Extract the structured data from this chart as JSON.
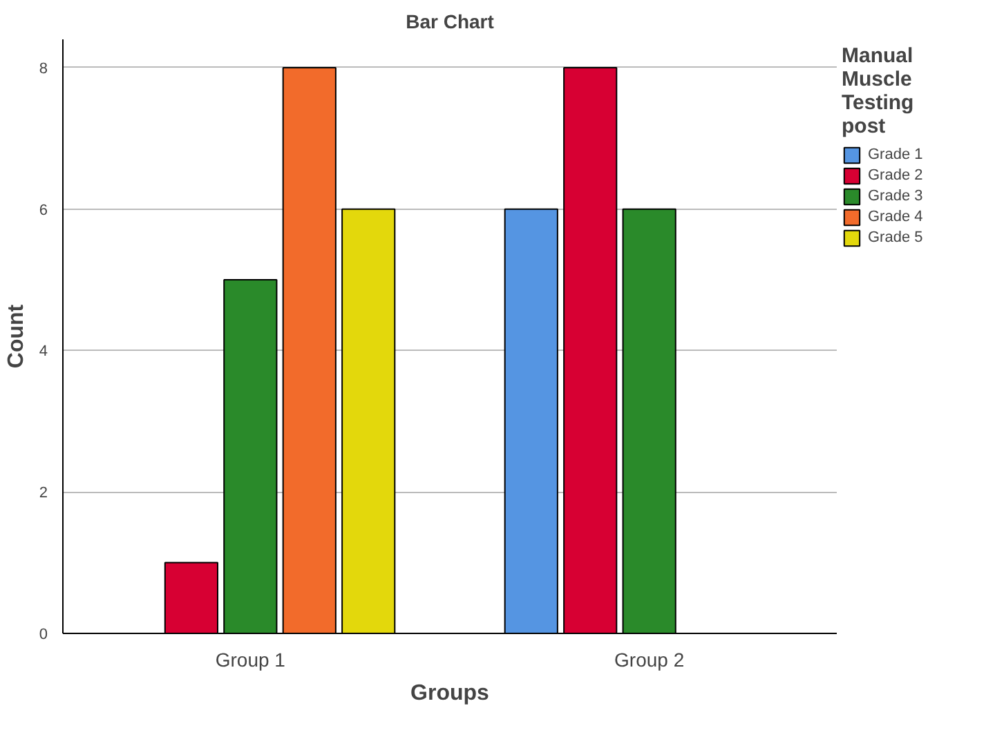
{
  "chart_data": {
    "type": "bar",
    "title": "Bar Chart",
    "xlabel": "Groups",
    "ylabel": "Count",
    "legend_title": "Manual Muscle Testing post",
    "categories": [
      "Group 1",
      "Group 2"
    ],
    "series": [
      {
        "name": "Grade 1",
        "color": "#5595e2",
        "values": [
          null,
          6
        ]
      },
      {
        "name": "Grade 2",
        "color": "#d70033",
        "values": [
          1,
          8
        ]
      },
      {
        "name": "Grade 3",
        "color": "#2a8a2a",
        "values": [
          5,
          6
        ]
      },
      {
        "name": "Grade 4",
        "color": "#f26b2b",
        "values": [
          8,
          null
        ]
      },
      {
        "name": "Grade 5",
        "color": "#e3d80c",
        "values": [
          6,
          null
        ]
      }
    ],
    "ylim": [
      0,
      8.4
    ],
    "yticks": [
      0,
      2,
      4,
      6,
      8
    ],
    "grid": "y",
    "legend": "right"
  }
}
